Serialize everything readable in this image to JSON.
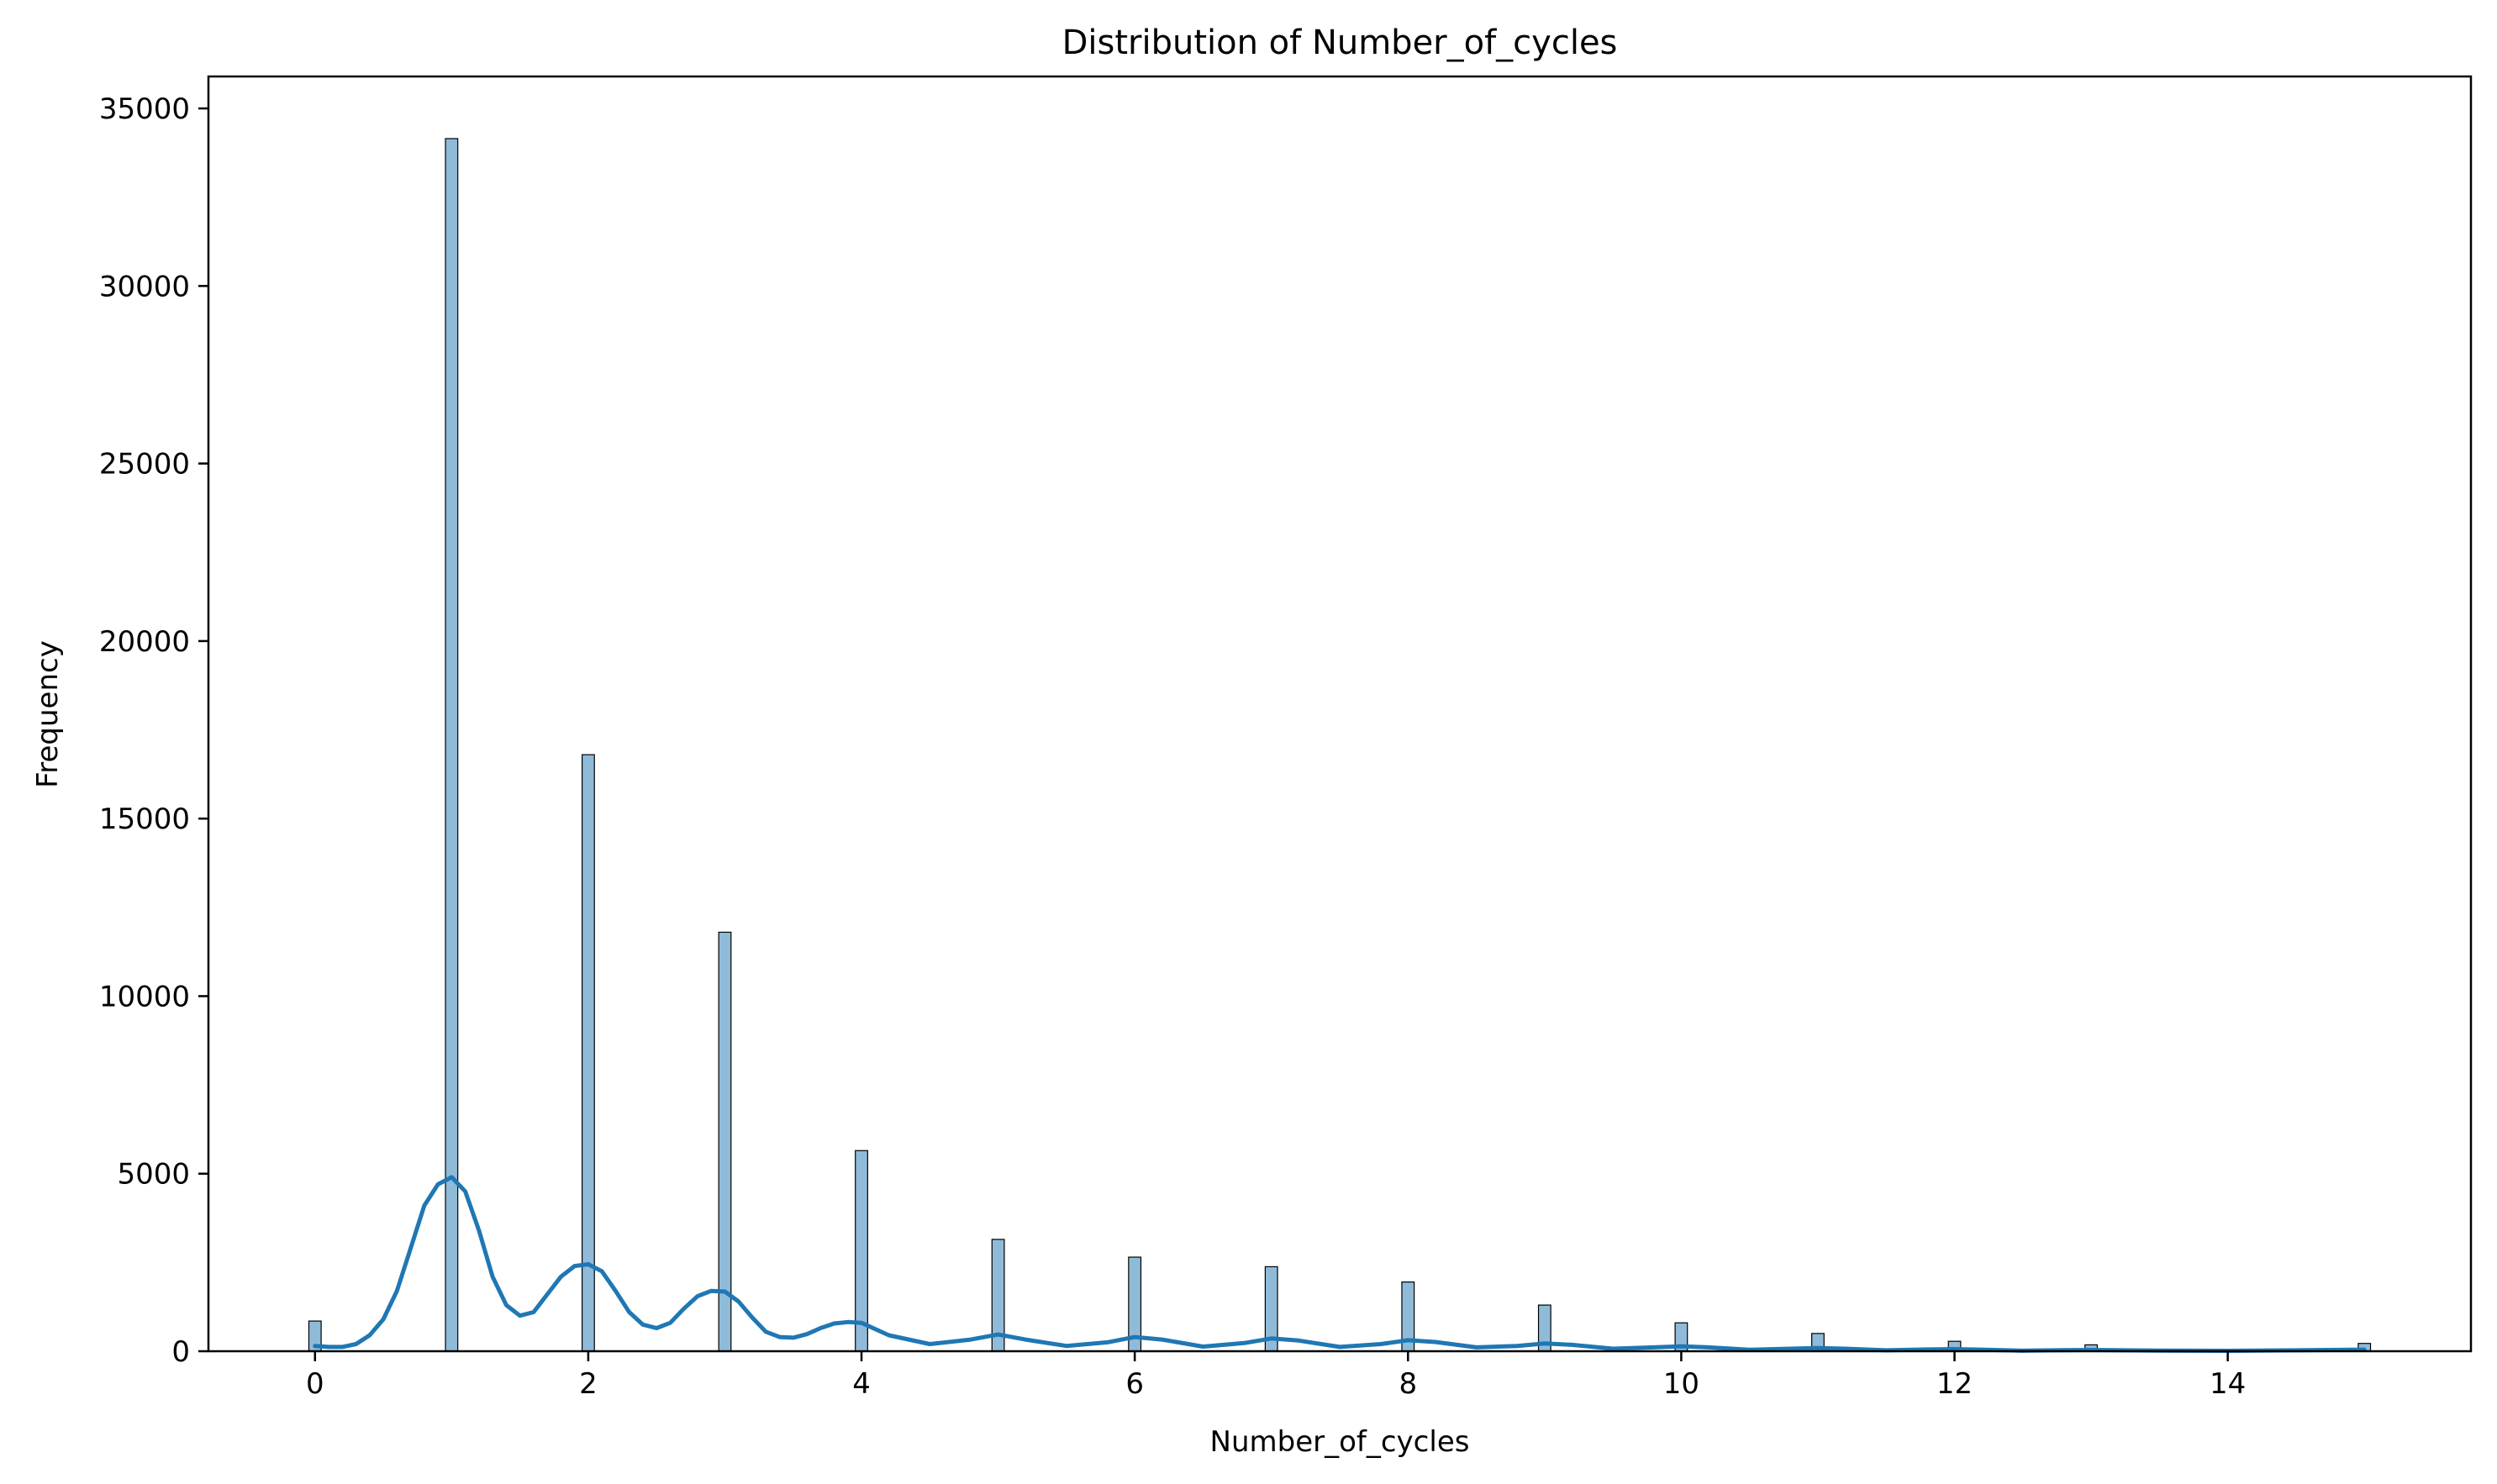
{
  "chart_data": {
    "type": "bar",
    "title": "Distribution of Number_of_cycles",
    "xlabel": "Number_of_cycles",
    "ylabel": "Frequency",
    "xlim": [
      -0.78,
      15.78
    ],
    "ylim": [
      0,
      35900
    ],
    "x_ticks": [
      0,
      2,
      4,
      6,
      8,
      10,
      12,
      14
    ],
    "y_ticks": [
      0,
      5000,
      10000,
      15000,
      20000,
      25000,
      30000,
      35000
    ],
    "bar_color": "#1f77b4",
    "bar_opacity": 0.5,
    "kde_color": "#1f77b4",
    "grid": false,
    "legend": "none",
    "categories": [
      0,
      1,
      2,
      3,
      4,
      5,
      6,
      7,
      8,
      9,
      10,
      11,
      12,
      13,
      15
    ],
    "values": [
      850,
      34150,
      16800,
      11800,
      5650,
      3150,
      2650,
      2380,
      1950,
      1300,
      800,
      500,
      280,
      180,
      220
    ],
    "kde": {
      "x": [
        0.0,
        0.1,
        0.2,
        0.3,
        0.4,
        0.5,
        0.6,
        0.7,
        0.8,
        0.9,
        1.0,
        1.1,
        1.2,
        1.3,
        1.4,
        1.5,
        1.6,
        1.7,
        1.8,
        1.9,
        2.0,
        2.1,
        2.2,
        2.3,
        2.4,
        2.5,
        2.6,
        2.7,
        2.8,
        2.9,
        3.0,
        3.1,
        3.2,
        3.3,
        3.4,
        3.5,
        3.6,
        3.7,
        3.8,
        3.9,
        4.0,
        4.2,
        4.5,
        4.8,
        5.0,
        5.2,
        5.5,
        5.8,
        6.0,
        6.2,
        6.5,
        6.8,
        7.0,
        7.2,
        7.5,
        7.8,
        8.0,
        8.2,
        8.5,
        8.8,
        9.0,
        9.2,
        9.5,
        9.8,
        10.0,
        10.2,
        10.5,
        10.8,
        11.0,
        11.2,
        11.5,
        11.8,
        12.0,
        12.2,
        12.5,
        12.8,
        13.0,
        13.5,
        14.0,
        14.5,
        15.0
      ],
      "y": [
        150,
        120,
        120,
        200,
        450,
        900,
        1700,
        2900,
        4100,
        4700,
        4900,
        4500,
        3400,
        2100,
        1300,
        1000,
        1100,
        1600,
        2100,
        2400,
        2450,
        2250,
        1700,
        1100,
        750,
        650,
        800,
        1200,
        1550,
        1700,
        1680,
        1400,
        950,
        550,
        400,
        380,
        480,
        650,
        780,
        820,
        800,
        450,
        200,
        330,
        470,
        330,
        150,
        250,
        400,
        330,
        130,
        230,
        360,
        300,
        120,
        200,
        310,
        260,
        110,
        150,
        220,
        180,
        70,
        110,
        140,
        110,
        40,
        70,
        90,
        70,
        25,
        50,
        60,
        45,
        15,
        30,
        35,
        20,
        12,
        25,
        45
      ]
    }
  }
}
